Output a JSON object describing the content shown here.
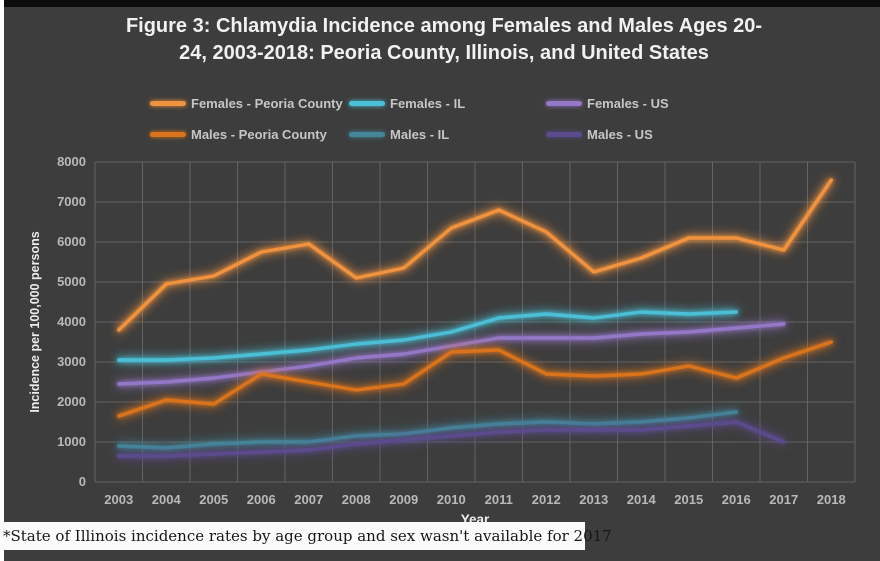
{
  "frame": {
    "title_line1": "Figure 3: Chlamydia Incidence among Females and Males Ages 20-",
    "title_line2": "24, 2003-2018: Peoria County, Illinois, and United States",
    "footnote": "*State of Illinois incidence rates by age group and sex wasn't available for 2017"
  },
  "colors": {
    "panel_bg": "#3d3d3d",
    "page_bg": "#ffffff",
    "top_bar": "#0c0c0c",
    "gridline": "#636363",
    "tick_text": "#b9b9b9",
    "title_text": "#f1f1f1",
    "legend_text": "#c6c6c6",
    "footnote_text": "#171717"
  },
  "chart_data": {
    "type": "line",
    "title": "Figure 3: Chlamydia Incidence among Females and Males Ages 20-24, 2003-2018: Peoria County, Illinois, and United States",
    "xlabel": "Year",
    "ylabel": "Incidence per 100,000 persons",
    "ylim": [
      0,
      8000
    ],
    "ytick_interval": 1000,
    "grid": true,
    "legend_position": "top",
    "categories": [
      "2003",
      "2004",
      "2005",
      "2006",
      "2007",
      "2008",
      "2009",
      "2010",
      "2011",
      "2012",
      "2013",
      "2014",
      "2015",
      "2016",
      "2017",
      "2018"
    ],
    "series": [
      {
        "name": "Females - Peoria County",
        "color": "#f0923e",
        "values": [
          3800,
          4950,
          5150,
          5750,
          5950,
          5100,
          5350,
          6350,
          6800,
          6250,
          5250,
          5600,
          6100,
          6100,
          5800,
          7550
        ]
      },
      {
        "name": "Females - IL",
        "color": "#4bbfd6",
        "values": [
          3050,
          3050,
          3100,
          3200,
          3300,
          3450,
          3550,
          3750,
          4100,
          4200,
          4100,
          4250,
          4200,
          4250,
          null,
          null
        ]
      },
      {
        "name": "Females - US",
        "color": "#9477c6",
        "values": [
          2450,
          2500,
          2600,
          2750,
          2900,
          3100,
          3200,
          3400,
          3600,
          3600,
          3600,
          3700,
          3750,
          3850,
          3950,
          null
        ]
      },
      {
        "name": "Males - Peoria County",
        "color": "#d9731c",
        "values": [
          1650,
          2050,
          1950,
          2700,
          2500,
          2300,
          2450,
          3250,
          3300,
          2700,
          2650,
          2700,
          2900,
          2600,
          3100,
          3500
        ]
      },
      {
        "name": "Males - IL",
        "color": "#44879a",
        "values": [
          900,
          850,
          950,
          1000,
          1000,
          1150,
          1200,
          1350,
          1450,
          1500,
          1450,
          1500,
          1600,
          1750,
          null,
          null
        ]
      },
      {
        "name": "Males - US",
        "color": "#5c4b8c",
        "values": [
          650,
          650,
          700,
          750,
          800,
          950,
          1050,
          1150,
          1250,
          1300,
          1300,
          1300,
          1400,
          1500,
          1000,
          null
        ]
      }
    ]
  }
}
